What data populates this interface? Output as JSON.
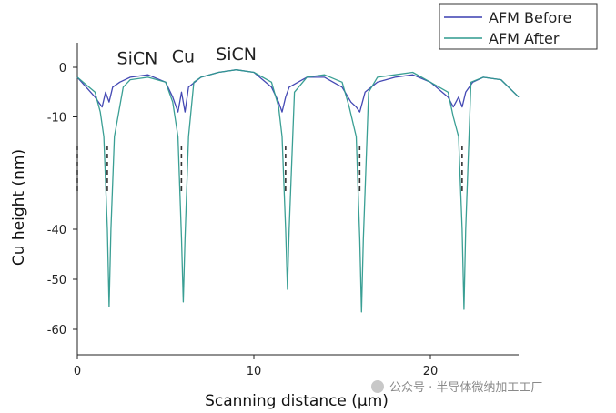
{
  "chart_data": {
    "type": "line",
    "xlabel": "Scanning distance (μm)",
    "ylabel": "Cu height (nm)",
    "xlim": [
      0,
      25
    ],
    "x_ticks": [
      0,
      10,
      20
    ],
    "y_ticks": [
      0,
      -10,
      -40,
      -50,
      -60
    ],
    "y_axis_break": [
      -15.5,
      -35
    ],
    "legend_position": "top-right",
    "grid": false,
    "series": [
      {
        "name": "AFM Before",
        "color": "#3a3fb0",
        "x": [
          0,
          0.5,
          1.0,
          1.4,
          1.6,
          1.8,
          2.0,
          2.4,
          3.0,
          4.0,
          5.0,
          5.4,
          5.7,
          5.9,
          6.1,
          6.3,
          7.0,
          8.0,
          9.0,
          10.0,
          11.0,
          11.4,
          11.6,
          11.8,
          12.0,
          12.5,
          13.0,
          14.0,
          15.0,
          15.5,
          15.8,
          16.0,
          16.3,
          17.0,
          18.0,
          19.0,
          20.0,
          21.0,
          21.3,
          21.6,
          21.8,
          22.0,
          22.4,
          23.0,
          24.0,
          25.0
        ],
        "y": [
          -2,
          -4,
          -6,
          -8,
          -5,
          -7,
          -4,
          -3,
          -2,
          -1.5,
          -3,
          -6,
          -9,
          -5,
          -9,
          -4,
          -2,
          -1,
          -0.5,
          -1,
          -4,
          -7,
          -9,
          -6,
          -4,
          -3,
          -2,
          -2,
          -4,
          -7,
          -8,
          -9,
          -5,
          -3,
          -2,
          -1.5,
          -3,
          -6,
          -8,
          -6,
          -8,
          -5,
          -3,
          -2,
          -2.5,
          -6
        ]
      },
      {
        "name": "AFM After",
        "color": "#2f9a8e",
        "x": [
          0,
          0.5,
          1.0,
          1.3,
          1.5,
          1.7,
          1.8,
          1.9,
          2.1,
          2.6,
          3.0,
          4.0,
          5.0,
          5.4,
          5.7,
          5.9,
          6.0,
          6.1,
          6.3,
          6.6,
          7.0,
          8.0,
          9.0,
          10.0,
          11.0,
          11.4,
          11.6,
          11.8,
          11.9,
          12.0,
          12.3,
          13.0,
          14.0,
          15.0,
          15.4,
          15.8,
          16.0,
          16.1,
          16.2,
          16.5,
          17.0,
          18.0,
          19.0,
          20.0,
          21.0,
          21.3,
          21.6,
          21.8,
          21.9,
          22.0,
          22.3,
          23.0,
          24.0,
          25.0
        ],
        "y": [
          -2,
          -3.5,
          -5,
          -9,
          -14,
          -40,
          -55.5,
          -40,
          -14,
          -4,
          -2.5,
          -2,
          -3,
          -7,
          -14,
          -42,
          -54.5,
          -42,
          -14,
          -3,
          -2,
          -1,
          -0.5,
          -1,
          -3,
          -8,
          -14,
          -40,
          -52,
          -40,
          -5,
          -2,
          -1.5,
          -3,
          -8,
          -14,
          -42,
          -56.5,
          -42,
          -5,
          -2,
          -1.5,
          -1,
          -3,
          -5,
          -10,
          -14,
          -40,
          -56,
          -40,
          -3,
          -2,
          -2.5,
          -6
        ]
      }
    ],
    "annotations": [
      {
        "text": "SiCN",
        "x": 3.4,
        "y": 0.6
      },
      {
        "text": "Cu",
        "x": 6.0,
        "y": 1.0
      },
      {
        "text": "SiCN",
        "x": 9.0,
        "y": 1.5
      }
    ]
  },
  "watermark": "公众号 · 半导体微纳加工工厂"
}
